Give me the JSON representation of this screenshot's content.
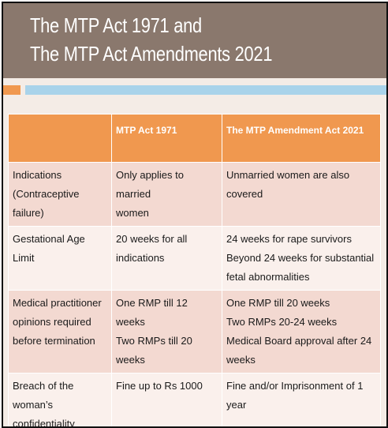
{
  "slide": {
    "title_lines": [
      "The MTP Act 1971 and",
      "The MTP Act Amendments 2021"
    ],
    "colors": {
      "title_band": "#8a786d",
      "accent_orange": "#f0984f",
      "accent_blue": "#a9d3ea",
      "header_fill": "#f0984f",
      "row_pink": "#f3d9d1",
      "row_light": "#faf0ec"
    }
  },
  "table": {
    "headers": [
      "",
      "MTP Act 1971",
      "The MTP Amendment Act 2021"
    ],
    "rows": [
      {
        "label": [
          "Indications",
          "(Contraceptive failure)"
        ],
        "act1971": [
          "Only applies to married",
          "women"
        ],
        "act2021": [
          "Unmarried women are also covered"
        ]
      },
      {
        "label": [
          "Gestational Age Limit"
        ],
        "act1971": [
          "20 weeks for all",
          "indications"
        ],
        "act2021": [
          "24 weeks for rape survivors",
          "Beyond 24 weeks for substantial",
          "fetal abnormalities"
        ]
      },
      {
        "label": [
          "Medical practitioner",
          "opinions required",
          "before termination"
        ],
        "act1971": [
          "One RMP till 12 weeks",
          "Two RMPs till 20 weeks"
        ],
        "act2021": [
          "One RMP till 20 weeks",
          "Two RMPs 20-24 weeks",
          "Medical Board approval after 24",
          "weeks"
        ]
      },
      {
        "label": [
          "Breach of the woman’s",
          "confidentiality"
        ],
        "act1971": [
          "Fine up to Rs 1000"
        ],
        "act2021": [
          "Fine and/or Imprisonment of 1 year"
        ]
      }
    ]
  }
}
